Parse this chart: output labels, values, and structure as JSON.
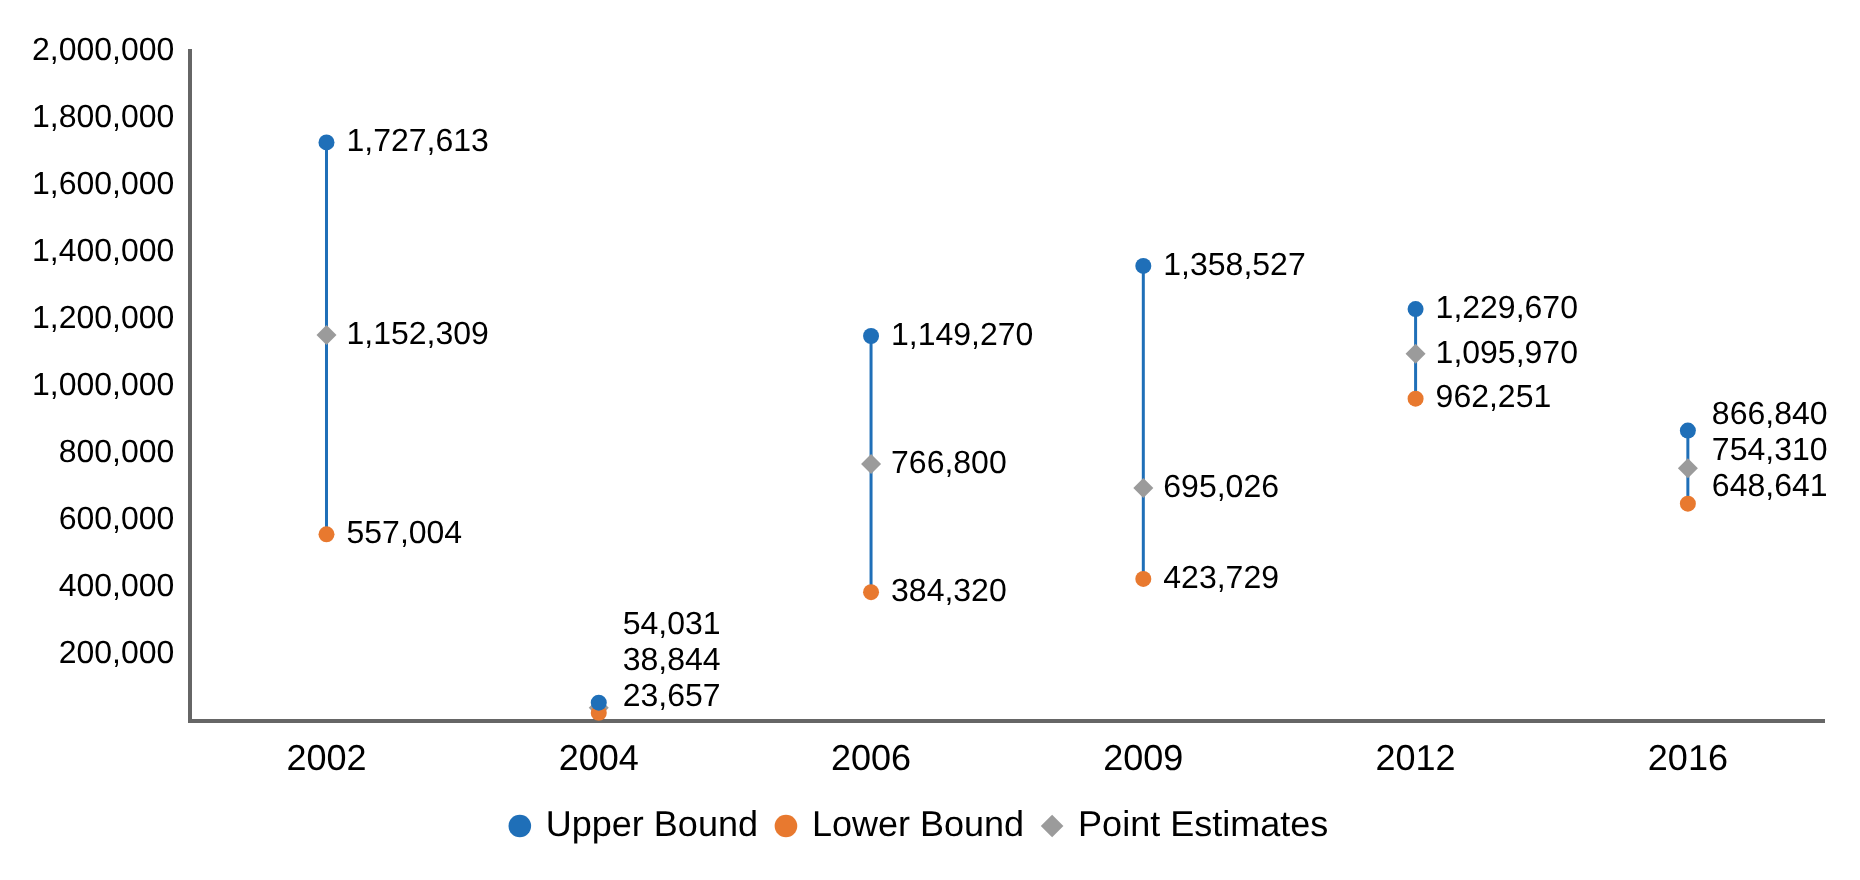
{
  "chart_data": {
    "type": "scatter",
    "categories": [
      "2002",
      "2004",
      "2006",
      "2009",
      "2012",
      "2016"
    ],
    "series": [
      {
        "name": "Upper Bound",
        "color": "#1f6fb8",
        "marker": "circle",
        "values": [
          1727613,
          54031,
          1149270,
          1358527,
          1229670,
          866840
        ],
        "value_labels": [
          "1,727,613",
          "54,031",
          "1,149,270",
          "1,358,527",
          "1,229,670",
          "866,840"
        ]
      },
      {
        "name": "Lower Bound",
        "color": "#e8792f",
        "marker": "circle",
        "values": [
          557004,
          23657,
          384320,
          423729,
          962251,
          648641
        ],
        "value_labels": [
          "557,004",
          "23,657",
          "384,320",
          "423,729",
          "962,251",
          "648,641"
        ]
      },
      {
        "name": "Point Estimates",
        "color": "#9b9b9b",
        "marker": "diamond",
        "values": [
          1152309,
          38844,
          766800,
          695026,
          1095970,
          754310
        ],
        "value_labels": [
          "1,152,309",
          "38,844",
          "766,800",
          "695,026",
          "1,095,970",
          "754,310"
        ]
      }
    ],
    "ylim": [
      0,
      2000000
    ],
    "yticks": [
      {
        "value": 200000,
        "label": "200,000"
      },
      {
        "value": 400000,
        "label": "400,000"
      },
      {
        "value": 600000,
        "label": "600,000"
      },
      {
        "value": 800000,
        "label": "800,000"
      },
      {
        "value": 1000000,
        "label": "1,000,000"
      },
      {
        "value": 1200000,
        "label": "1,200,000"
      },
      {
        "value": 1400000,
        "label": "1,400,000"
      },
      {
        "value": 1600000,
        "label": "1,600,000"
      },
      {
        "value": 1800000,
        "label": "1,800,000"
      },
      {
        "value": 2000000,
        "label": "2,000,000"
      }
    ],
    "grid": false,
    "legend": "bottom"
  }
}
